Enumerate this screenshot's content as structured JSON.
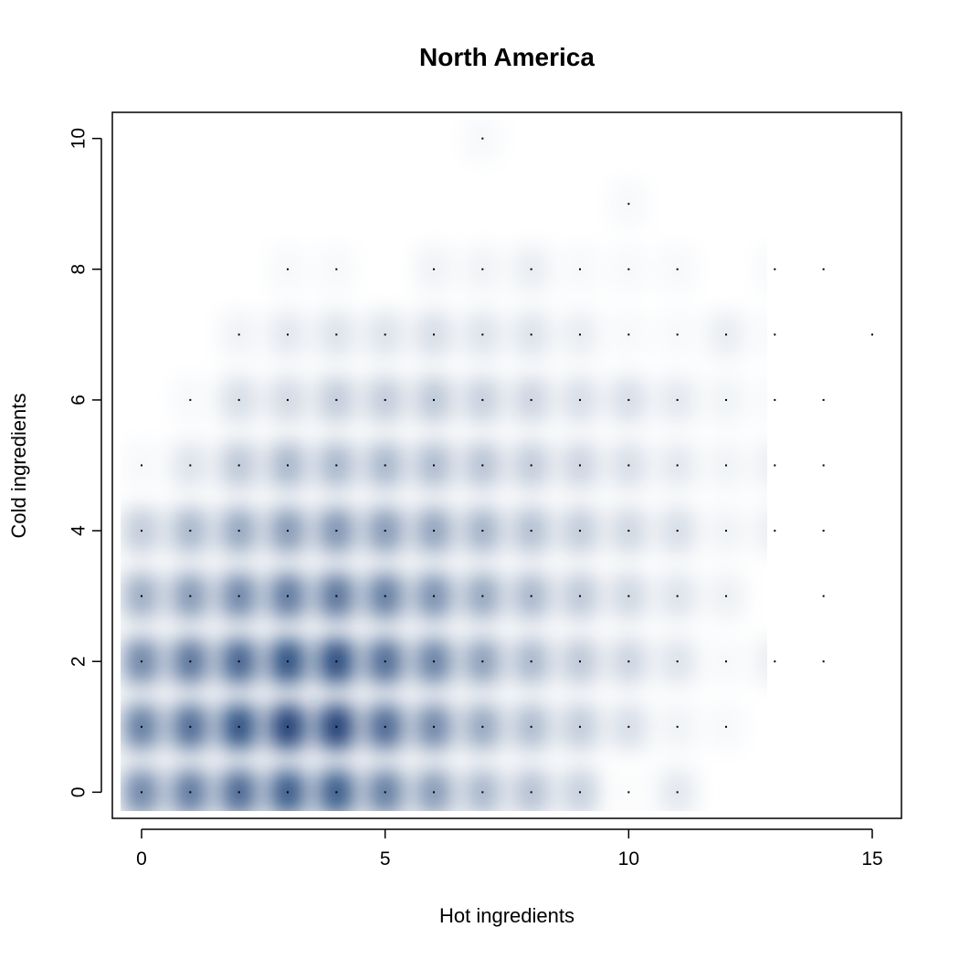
{
  "chart_data": {
    "type": "heatmap",
    "title": "North America",
    "xlabel": "Hot ingredients",
    "ylabel": "Cold ingredients",
    "xlim": [
      -0.6,
      15.6
    ],
    "ylim": [
      -0.4,
      10.4
    ],
    "xticks": [
      0,
      5,
      10,
      15
    ],
    "yticks": [
      0,
      2,
      4,
      6,
      8,
      10
    ],
    "grid": false,
    "legend": "none",
    "color_scale": [
      "#ffffff",
      "#08306b"
    ],
    "points": [
      {
        "x": 0,
        "y": 0,
        "v": 0.55
      },
      {
        "x": 1,
        "y": 0,
        "v": 0.62
      },
      {
        "x": 2,
        "y": 0,
        "v": 0.72
      },
      {
        "x": 3,
        "y": 0,
        "v": 0.8
      },
      {
        "x": 4,
        "y": 0,
        "v": 0.8
      },
      {
        "x": 5,
        "y": 0,
        "v": 0.6
      },
      {
        "x": 6,
        "y": 0,
        "v": 0.45
      },
      {
        "x": 7,
        "y": 0,
        "v": 0.3
      },
      {
        "x": 8,
        "y": 0,
        "v": 0.25
      },
      {
        "x": 9,
        "y": 0,
        "v": 0.18
      },
      {
        "x": 10,
        "y": 0,
        "v": 0.01
      },
      {
        "x": 11,
        "y": 0,
        "v": 0.08
      },
      {
        "x": 0,
        "y": 1,
        "v": 0.6
      },
      {
        "x": 1,
        "y": 1,
        "v": 0.7
      },
      {
        "x": 2,
        "y": 1,
        "v": 0.85
      },
      {
        "x": 3,
        "y": 1,
        "v": 0.95
      },
      {
        "x": 4,
        "y": 1,
        "v": 0.95
      },
      {
        "x": 5,
        "y": 1,
        "v": 0.72
      },
      {
        "x": 6,
        "y": 1,
        "v": 0.55
      },
      {
        "x": 7,
        "y": 1,
        "v": 0.38
      },
      {
        "x": 8,
        "y": 1,
        "v": 0.28
      },
      {
        "x": 9,
        "y": 1,
        "v": 0.2
      },
      {
        "x": 10,
        "y": 1,
        "v": 0.12
      },
      {
        "x": 11,
        "y": 1,
        "v": 0.04
      },
      {
        "x": 12,
        "y": 1,
        "v": 0.02
      },
      {
        "x": 0,
        "y": 2,
        "v": 0.55
      },
      {
        "x": 1,
        "y": 2,
        "v": 0.65
      },
      {
        "x": 2,
        "y": 2,
        "v": 0.75
      },
      {
        "x": 3,
        "y": 2,
        "v": 0.85
      },
      {
        "x": 4,
        "y": 2,
        "v": 0.88
      },
      {
        "x": 5,
        "y": 2,
        "v": 0.7
      },
      {
        "x": 6,
        "y": 2,
        "v": 0.58
      },
      {
        "x": 7,
        "y": 2,
        "v": 0.42
      },
      {
        "x": 8,
        "y": 2,
        "v": 0.3
      },
      {
        "x": 9,
        "y": 2,
        "v": 0.22
      },
      {
        "x": 10,
        "y": 2,
        "v": 0.16
      },
      {
        "x": 11,
        "y": 2,
        "v": 0.1
      },
      {
        "x": 12,
        "y": 2,
        "v": 0.02
      },
      {
        "x": 13,
        "y": 2,
        "v": 0.06
      },
      {
        "x": 14,
        "y": 2,
        "v": 0.02
      },
      {
        "x": 0,
        "y": 3,
        "v": 0.35
      },
      {
        "x": 1,
        "y": 3,
        "v": 0.45
      },
      {
        "x": 2,
        "y": 3,
        "v": 0.55
      },
      {
        "x": 3,
        "y": 3,
        "v": 0.62
      },
      {
        "x": 4,
        "y": 3,
        "v": 0.65
      },
      {
        "x": 5,
        "y": 3,
        "v": 0.6
      },
      {
        "x": 6,
        "y": 3,
        "v": 0.5
      },
      {
        "x": 7,
        "y": 3,
        "v": 0.38
      },
      {
        "x": 8,
        "y": 3,
        "v": 0.3
      },
      {
        "x": 9,
        "y": 3,
        "v": 0.22
      },
      {
        "x": 10,
        "y": 3,
        "v": 0.15
      },
      {
        "x": 11,
        "y": 3,
        "v": 0.1
      },
      {
        "x": 12,
        "y": 3,
        "v": 0.05
      },
      {
        "x": 14,
        "y": 3,
        "v": 0.01
      },
      {
        "x": 0,
        "y": 4,
        "v": 0.2
      },
      {
        "x": 1,
        "y": 4,
        "v": 0.3
      },
      {
        "x": 2,
        "y": 4,
        "v": 0.38
      },
      {
        "x": 3,
        "y": 4,
        "v": 0.45
      },
      {
        "x": 4,
        "y": 4,
        "v": 0.48
      },
      {
        "x": 5,
        "y": 4,
        "v": 0.45
      },
      {
        "x": 6,
        "y": 4,
        "v": 0.4
      },
      {
        "x": 7,
        "y": 4,
        "v": 0.32
      },
      {
        "x": 8,
        "y": 4,
        "v": 0.26
      },
      {
        "x": 9,
        "y": 4,
        "v": 0.2
      },
      {
        "x": 10,
        "y": 4,
        "v": 0.15
      },
      {
        "x": 11,
        "y": 4,
        "v": 0.12
      },
      {
        "x": 12,
        "y": 4,
        "v": 0.04
      },
      {
        "x": 13,
        "y": 4,
        "v": 0.06
      },
      {
        "x": 14,
        "y": 4,
        "v": 0.01
      },
      {
        "x": 0,
        "y": 5,
        "v": 0.02
      },
      {
        "x": 1,
        "y": 5,
        "v": 0.1
      },
      {
        "x": 2,
        "y": 5,
        "v": 0.22
      },
      {
        "x": 3,
        "y": 5,
        "v": 0.3
      },
      {
        "x": 4,
        "y": 5,
        "v": 0.3
      },
      {
        "x": 5,
        "y": 5,
        "v": 0.3
      },
      {
        "x": 6,
        "y": 5,
        "v": 0.28
      },
      {
        "x": 7,
        "y": 5,
        "v": 0.24
      },
      {
        "x": 8,
        "y": 5,
        "v": 0.2
      },
      {
        "x": 9,
        "y": 5,
        "v": 0.16
      },
      {
        "x": 10,
        "y": 5,
        "v": 0.12
      },
      {
        "x": 11,
        "y": 5,
        "v": 0.08
      },
      {
        "x": 12,
        "y": 5,
        "v": 0.04
      },
      {
        "x": 13,
        "y": 5,
        "v": 0.06
      },
      {
        "x": 14,
        "y": 5,
        "v": 0.06
      },
      {
        "x": 1,
        "y": 6,
        "v": 0.02
      },
      {
        "x": 2,
        "y": 6,
        "v": 0.12
      },
      {
        "x": 3,
        "y": 6,
        "v": 0.14
      },
      {
        "x": 4,
        "y": 6,
        "v": 0.2
      },
      {
        "x": 5,
        "y": 6,
        "v": 0.2
      },
      {
        "x": 6,
        "y": 6,
        "v": 0.22
      },
      {
        "x": 7,
        "y": 6,
        "v": 0.18
      },
      {
        "x": 8,
        "y": 6,
        "v": 0.16
      },
      {
        "x": 9,
        "y": 6,
        "v": 0.12
      },
      {
        "x": 10,
        "y": 6,
        "v": 0.12
      },
      {
        "x": 11,
        "y": 6,
        "v": 0.08
      },
      {
        "x": 12,
        "y": 6,
        "v": 0.04
      },
      {
        "x": 13,
        "y": 6,
        "v": 0.02
      },
      {
        "x": 14,
        "y": 6,
        "v": 0.02
      },
      {
        "x": 2,
        "y": 7,
        "v": 0.04
      },
      {
        "x": 3,
        "y": 7,
        "v": 0.08
      },
      {
        "x": 4,
        "y": 7,
        "v": 0.1
      },
      {
        "x": 5,
        "y": 7,
        "v": 0.1
      },
      {
        "x": 6,
        "y": 7,
        "v": 0.12
      },
      {
        "x": 7,
        "y": 7,
        "v": 0.1
      },
      {
        "x": 8,
        "y": 7,
        "v": 0.1
      },
      {
        "x": 9,
        "y": 7,
        "v": 0.06
      },
      {
        "x": 10,
        "y": 7,
        "v": 0.02
      },
      {
        "x": 11,
        "y": 7,
        "v": 0.02
      },
      {
        "x": 12,
        "y": 7,
        "v": 0.06
      },
      {
        "x": 13,
        "y": 7,
        "v": 0.02
      },
      {
        "x": 15,
        "y": 7,
        "v": 0.02
      },
      {
        "x": 3,
        "y": 8,
        "v": 0.02
      },
      {
        "x": 4,
        "y": 8,
        "v": 0.02
      },
      {
        "x": 6,
        "y": 8,
        "v": 0.04
      },
      {
        "x": 7,
        "y": 8,
        "v": 0.04
      },
      {
        "x": 8,
        "y": 8,
        "v": 0.06
      },
      {
        "x": 9,
        "y": 8,
        "v": 0.02
      },
      {
        "x": 10,
        "y": 8,
        "v": 0.02
      },
      {
        "x": 11,
        "y": 8,
        "v": 0.02
      },
      {
        "x": 13,
        "y": 8,
        "v": 0.02
      },
      {
        "x": 14,
        "y": 8,
        "v": 0.02
      },
      {
        "x": 10,
        "y": 9,
        "v": 0.02
      },
      {
        "x": 7,
        "y": 10,
        "v": 0.02
      }
    ]
  }
}
